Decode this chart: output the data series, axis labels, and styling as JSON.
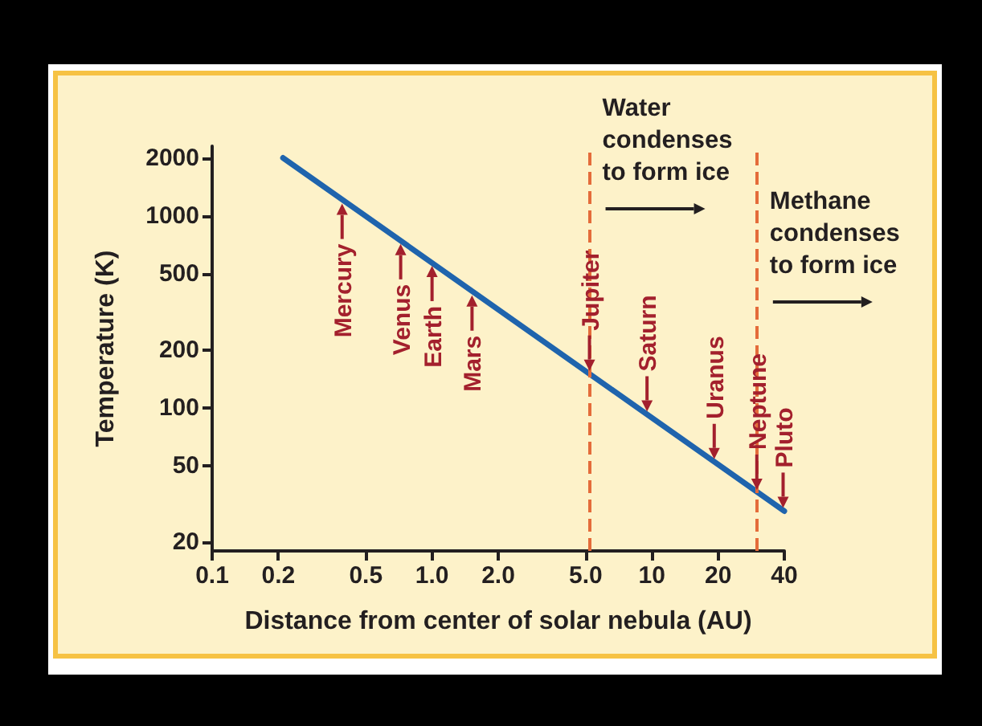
{
  "chart_data": {
    "type": "line",
    "xlabel": "Distance from center of solar nebula (AU)",
    "ylabel": "Temperature (K)",
    "log": "xy",
    "grid": false,
    "marker": "none",
    "line_style": "solid",
    "xlim": [
      0.1,
      40
    ],
    "ylim": [
      18,
      2300
    ],
    "xticks": [
      0.1,
      0.2,
      0.5,
      {
        "value": 1,
        "label": "1.0"
      },
      {
        "value": 2,
        "label": "2.0"
      },
      {
        "value": 5,
        "label": "5.0"
      },
      10,
      20,
      40
    ],
    "yticks": [
      20,
      50,
      100,
      200,
      500,
      1000,
      2000
    ],
    "series": [
      {
        "color": "#1f64ad",
        "x": [
          0.21,
          40
        ],
        "values": [
          2000,
          29
        ]
      }
    ],
    "ref_lines": [
      {
        "axis": "x",
        "value": 5.2,
        "label": "Water condenses to form ice",
        "color": "#e46c3a",
        "line_style": "dashed"
      },
      {
        "axis": "x",
        "value": 30,
        "label": "Methane condenses to form ice",
        "color": "#e46c3a",
        "line_style": "dashed"
      }
    ],
    "annotations": [
      {
        "text": "Mercury",
        "x": 0.39,
        "y": 1200
      },
      {
        "text": "Venus",
        "x": 0.72,
        "y": 740
      },
      {
        "text": "Earth",
        "x": 1,
        "y": 570
      },
      {
        "text": "Mars",
        "x": 1.52,
        "y": 400
      },
      {
        "text": "Jupiter",
        "x": 5.2,
        "y": 150
      },
      {
        "text": "Saturn",
        "x": 9.5,
        "y": 92
      },
      {
        "text": "Uranus",
        "x": 19.2,
        "y": 52
      },
      {
        "text": "Neptune",
        "x": 30,
        "y": 36
      },
      {
        "text": "Pluto",
        "x": 39.5,
        "y": 29
      }
    ]
  }
}
